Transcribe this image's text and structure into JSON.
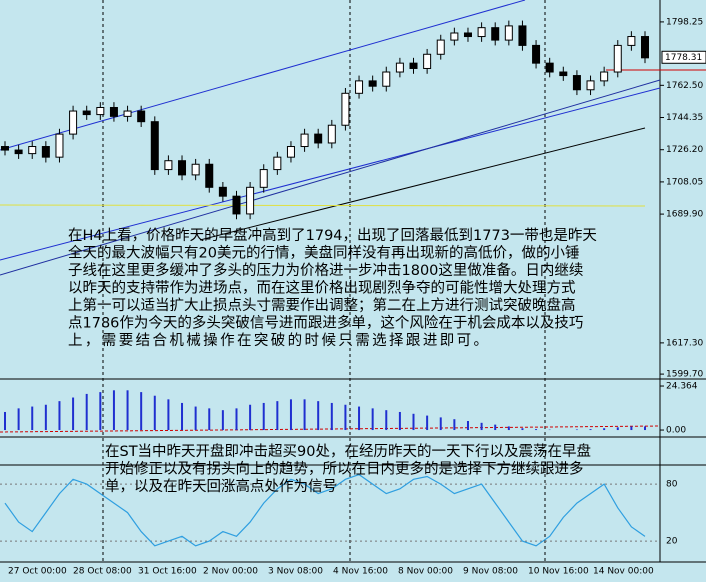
{
  "chart_data": {
    "type": "candlestick",
    "open": [
      1728,
      1726,
      1724,
      1728,
      1722,
      1735,
      1748,
      1746,
      1750,
      1745,
      1748,
      1742,
      1715,
      1720,
      1712,
      1718,
      1705,
      1700,
      1690,
      1705,
      1715,
      1722,
      1728,
      1735,
      1730,
      1740,
      1758,
      1765,
      1762,
      1770,
      1775,
      1772,
      1780,
      1788,
      1792,
      1790,
      1795,
      1788,
      1796,
      1785,
      1775,
      1770,
      1768,
      1760,
      1765,
      1770,
      1785,
      1790
    ],
    "high": [
      1731,
      1729,
      1731,
      1731,
      1738,
      1751,
      1751,
      1753,
      1753,
      1751,
      1751,
      1745,
      1723,
      1723,
      1721,
      1721,
      1708,
      1703,
      1708,
      1718,
      1725,
      1731,
      1738,
      1738,
      1743,
      1761,
      1768,
      1768,
      1773,
      1778,
      1778,
      1783,
      1791,
      1795,
      1795,
      1798,
      1798,
      1799,
      1799,
      1788,
      1778,
      1773,
      1771,
      1768,
      1773,
      1788,
      1793,
      1793
    ],
    "low": [
      1723,
      1721,
      1721,
      1719,
      1719,
      1732,
      1743,
      1743,
      1742,
      1742,
      1739,
      1712,
      1712,
      1709,
      1709,
      1702,
      1697,
      1687,
      1687,
      1702,
      1712,
      1719,
      1725,
      1727,
      1727,
      1737,
      1755,
      1759,
      1759,
      1767,
      1769,
      1769,
      1777,
      1785,
      1787,
      1787,
      1785,
      1785,
      1782,
      1772,
      1767,
      1765,
      1757,
      1757,
      1762,
      1767,
      1782,
      1775
    ],
    "close": [
      1726,
      1724,
      1728,
      1722,
      1735,
      1748,
      1746,
      1750,
      1745,
      1748,
      1742,
      1715,
      1720,
      1712,
      1718,
      1705,
      1700,
      1690,
      1705,
      1715,
      1722,
      1728,
      1735,
      1730,
      1740,
      1758,
      1765,
      1762,
      1770,
      1775,
      1772,
      1780,
      1788,
      1792,
      1790,
      1795,
      1788,
      1796,
      1785,
      1775,
      1770,
      1768,
      1760,
      1765,
      1770,
      1785,
      1790,
      1778
    ],
    "ylim": [
      1597.5,
      1810.6
    ],
    "yticks": [
      1798.25,
      {
        "value": 1762.5,
        "label": "1762.50"
      },
      1744.35,
      {
        "value": 1726.2,
        "label": "1726.20"
      },
      1708.05,
      {
        "value": 1689.9,
        "label": "1689.90"
      },
      {
        "value": 1617.3,
        "label": "1617.30"
      },
      {
        "value": 1599.7,
        "label": "1599.70"
      }
    ],
    "last_price": 1778.31,
    "macd": {
      "values": [
        10,
        12,
        13,
        14,
        16,
        18,
        20,
        21,
        22,
        22,
        21,
        19,
        17,
        15,
        13,
        12,
        11,
        12,
        14,
        15,
        16,
        17,
        17,
        16,
        15,
        14,
        13,
        12,
        11,
        10,
        9,
        8,
        7,
        6,
        5,
        4,
        3,
        2,
        1,
        0.5,
        0.2,
        0,
        0.3,
        0.5,
        1,
        1.5,
        2,
        2
      ],
      "color": "#1f2fd0",
      "ylim": [
        -3.3,
        27.7
      ],
      "yticks": [
        24.364,
        {
          "value": 0,
          "label": "0.00"
        }
      ]
    },
    "stochastic": {
      "values": [
        60,
        40,
        30,
        50,
        70,
        85,
        80,
        70,
        60,
        50,
        30,
        15,
        20,
        25,
        15,
        20,
        30,
        25,
        40,
        60,
        75,
        85,
        80,
        70,
        75,
        85,
        90,
        80,
        70,
        75,
        85,
        88,
        80,
        70,
        75,
        80,
        60,
        40,
        20,
        15,
        25,
        45,
        60,
        70,
        80,
        55,
        35,
        25
      ],
      "color": "#2f9fe0",
      "ylim": [
        -2,
        98
      ],
      "yticks": [
        80,
        20
      ]
    },
    "xtick_labels": [
      "27 Oct 00:00",
      "28 Oct 08:00",
      "31 Oct 16:00",
      "2 Nov 00:00",
      "3 Nov 08:00",
      "4 Nov 16:00",
      "8 Nov 00:00",
      "9 Nov 08:00",
      "10 Nov 16:00",
      "14 Nov 00:00"
    ],
    "annotations": [
      [
        "在H4上看，价格昨天的早盘冲高到了1794，出现了回落最低到1773一带也是昨天",
        "全天的最大波幅只有20美元的行情，美盘同样没有再出现新的高低价，做的小锤",
        "子线在这里更多缓冲了多头的压力为价格进一步冲击1800这里做准备。日内继续",
        "以昨天的支持带作为进场点，而在这里价格出现剧烈争夺的可能性增大处理方式",
        "上第一可以适当扩大止损点头寸需要作出调整；第二在上方进行测试突破晚盘高",
        "点1786作为今天的多头突破信号进而跟进多单，这个风险在于机会成本以及技巧",
        "上，需要结合机械操作在突破的时候只需选择跟进即可。"
      ],
      [
        "在ST当中昨天开盘即冲击超买90处，在经历昨天的一天下行以及震荡在早盘",
        "开始修正以及有拐头向上的趋势，所以在日内更多的是选择下方继续跟进多",
        "单，以及在昨天回涨高点处作为信号"
      ]
    ]
  }
}
